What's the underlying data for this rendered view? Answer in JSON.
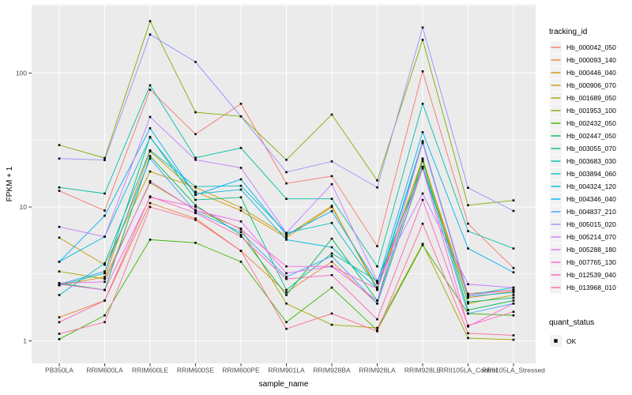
{
  "chart_data": {
    "type": "line",
    "title": "",
    "xlabel": "sample_name",
    "ylabel": "FPKM + 1",
    "y_scale": "log10",
    "y_ticks": [
      1,
      10,
      100
    ],
    "y_tick_labels": [
      "1",
      "10",
      "100"
    ],
    "ylim": [
      0.95,
      310
    ],
    "grid": "major-white-on-gray, minor at half decades",
    "panel_bg": "#EBEBEB",
    "grid_color": "#FFFFFF",
    "tick_label_color": "#4D4D4D",
    "point_marker": "small-black-square",
    "point_color": "#000000",
    "legend": {
      "position": "right",
      "tracking_title": "tracking_id",
      "quant_title": "quant_status",
      "quant_value": "OK",
      "key_bg": "#F2F2F2"
    },
    "categories": [
      "PB350LA",
      "RRIM600LA",
      "RRIM600LE",
      "RRIM600SE",
      "RRIM600PE",
      "RRIM901LA",
      "RRIM928BA",
      "RRIM928LA",
      "RRIM928LE",
      "RRII105LA_Control",
      "RRII105LA_Stressed"
    ],
    "series": [
      {
        "name": "Hb_000042_050",
        "color": "#F8766D",
        "values": [
          13.2,
          9.4,
          75,
          35,
          59,
          15,
          17,
          5.1,
          103,
          7.5,
          3.5
        ]
      },
      {
        "name": "Hb_000093_140",
        "color": "#EA8331",
        "values": [
          1.5,
          2.0,
          10.7,
          8.2,
          4.7,
          2.3,
          3.9,
          1.9,
          19.5,
          2.25,
          2.4
        ]
      },
      {
        "name": "Hb_000446_040",
        "color": "#D89000",
        "values": [
          2.6,
          3.0,
          26,
          13,
          9.4,
          5.9,
          10,
          2.5,
          22.5,
          2.1,
          2.35
        ]
      },
      {
        "name": "Hb_000906_070",
        "color": "#C09B00",
        "values": [
          5.9,
          3.7,
          18.4,
          14,
          9.9,
          6.1,
          10.2,
          2.4,
          23,
          1.9,
          2.2
        ]
      },
      {
        "name": "Hb_001689_050",
        "color": "#A3A500",
        "values": [
          3.3,
          2.9,
          15.2,
          9.5,
          6.9,
          1.9,
          1.32,
          1.25,
          5.3,
          1.05,
          1.02
        ]
      },
      {
        "name": "Hb_001953_100",
        "color": "#7CAE00",
        "values": [
          29,
          23.2,
          244,
          51,
          47.5,
          22.5,
          49,
          15.8,
          177,
          10.3,
          11.2
        ]
      },
      {
        "name": "Hb_002432_050",
        "color": "#39B600",
        "values": [
          1.03,
          1.55,
          5.7,
          5.4,
          3.9,
          1.38,
          2.5,
          1.2,
          5.2,
          1.6,
          1.55
        ]
      },
      {
        "name": "Hb_002447_050",
        "color": "#00BB4E",
        "values": [
          2.7,
          2.4,
          24,
          10.3,
          6.2,
          2.2,
          5.8,
          2.0,
          22,
          1.7,
          2.0
        ]
      },
      {
        "name": "Hb_003055_070",
        "color": "#00BF7D",
        "values": [
          2.6,
          3.2,
          33.4,
          11.3,
          11.8,
          2.4,
          4.5,
          2.8,
          20,
          1.95,
          2.1
        ]
      },
      {
        "name": "Hb_003683_030",
        "color": "#00C1A3",
        "values": [
          14,
          12.6,
          81,
          23.3,
          27.6,
          11.5,
          11.5,
          3.6,
          59,
          6.6,
          4.9
        ]
      },
      {
        "name": "Hb_003894_060",
        "color": "#00BFC4",
        "values": [
          2.2,
          3.8,
          26.5,
          14.2,
          14.4,
          6.4,
          7.6,
          2.5,
          31,
          2.2,
          2.5
        ]
      },
      {
        "name": "Hb_004324_120",
        "color": "#00BAE0",
        "values": [
          3.9,
          6.0,
          33,
          12.5,
          13.5,
          5.7,
          5.0,
          2.45,
          30,
          2.15,
          2.3
        ]
      },
      {
        "name": "Hb_004346_040",
        "color": "#00B0F6",
        "values": [
          3.9,
          8.6,
          38.7,
          12.3,
          16.1,
          6.2,
          9.3,
          2.7,
          36.2,
          4.9,
          3.25
        ]
      },
      {
        "name": "Hb_004837_210",
        "color": "#35A2FF",
        "values": [
          2.65,
          3.3,
          23,
          9.2,
          6.5,
          3.0,
          4.3,
          1.9,
          19.8,
          1.6,
          1.9
        ]
      },
      {
        "name": "Hb_005015_020",
        "color": "#9590FF",
        "values": [
          23,
          22.4,
          194,
          121,
          47.5,
          18.2,
          21.9,
          14,
          219,
          13.9,
          9.35
        ]
      },
      {
        "name": "Hb_005214_070",
        "color": "#C77CFF",
        "values": [
          7.1,
          6.0,
          47,
          22.5,
          19.6,
          6.4,
          14.8,
          2.8,
          12.6,
          2.65,
          2.5
        ]
      },
      {
        "name": "Hb_005288_180",
        "color": "#E76BF3",
        "values": [
          2.7,
          2.76,
          15.6,
          9.4,
          7.8,
          3.2,
          3.6,
          2.0,
          30.5,
          2.2,
          2.4
        ]
      },
      {
        "name": "Hb_007765_130",
        "color": "#FA62DB",
        "values": [
          2.65,
          2.4,
          11.8,
          10,
          6.8,
          3.6,
          3.6,
          2.45,
          19.4,
          1.28,
          1.9
        ]
      },
      {
        "name": "Hb_012539_040",
        "color": "#FF62BC",
        "values": [
          1.38,
          2.0,
          12,
          9,
          6.0,
          2.9,
          3.1,
          1.45,
          11.3,
          1.3,
          1.65
        ]
      },
      {
        "name": "Hb_013968_010",
        "color": "#FF6A98",
        "values": [
          1.13,
          1.38,
          10,
          8,
          4.7,
          1.23,
          1.6,
          1.18,
          7.5,
          1.14,
          1.1
        ]
      }
    ]
  }
}
